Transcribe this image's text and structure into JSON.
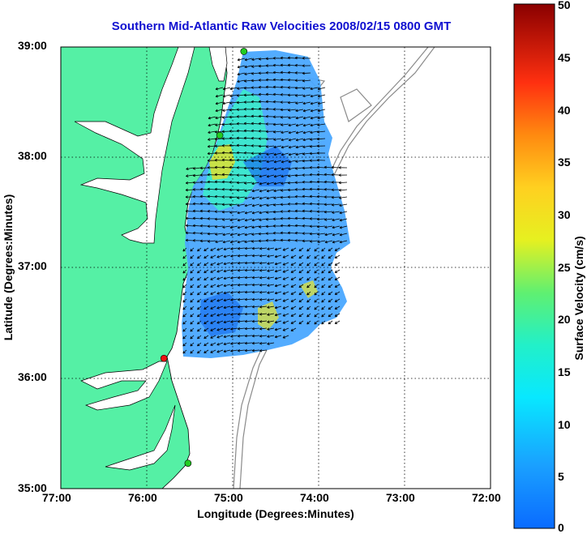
{
  "title": "Southern Mid-Atlantic Raw Velocities 2008/02/15 0800 GMT",
  "xlabel": "Longitude (Degrees:Minutes)",
  "ylabel": "Latitude (Degrees:Minutes)",
  "colorbar": {
    "label": "Surface Velocity (cm/s)",
    "ticks": [
      "50",
      "45",
      "40",
      "35",
      "30",
      "25",
      "20",
      "15",
      "10",
      "5",
      "0"
    ],
    "range": [
      0,
      50
    ]
  },
  "xticks": [
    "77:00",
    "76:00",
    "75:00",
    "74:00",
    "73:00",
    "72:00"
  ],
  "yticks": [
    "39:00",
    "38:00",
    "37:00",
    "36:00",
    "35:00"
  ],
  "colors": {
    "land": "#55f0a5",
    "water": "#ffffff",
    "title": "#1010d0",
    "station": "#22cc22",
    "station_alert": "#ee1111"
  },
  "map": {
    "lon_range": [
      -77,
      -72
    ],
    "lat_range": [
      35,
      39
    ],
    "grid": true,
    "stations": [
      {
        "lon": -74.87,
        "lat": 38.96,
        "status": "active"
      },
      {
        "lon": -75.15,
        "lat": 38.2,
        "status": "active"
      },
      {
        "lon": -75.8,
        "lat": 36.18,
        "status": "alert"
      },
      {
        "lon": -75.52,
        "lat": 35.23,
        "status": "active"
      }
    ]
  }
}
